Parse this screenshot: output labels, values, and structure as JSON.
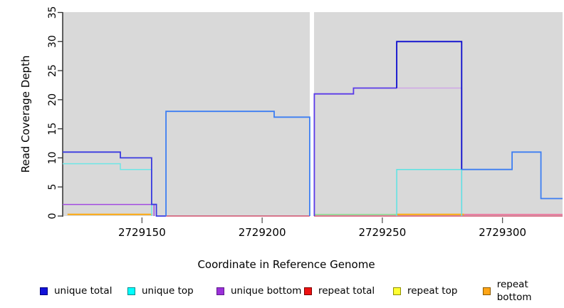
{
  "figure": {
    "xlabel": "Coordinate in Reference Genome",
    "ylabel": "Read Coverage Depth"
  },
  "legend": [
    {
      "label": "unique total",
      "color": "#1212d9",
      "border": "#000080"
    },
    {
      "label": "unique top",
      "color": "#00ffff",
      "border": "#008b8b"
    },
    {
      "label": "unique bottom",
      "color": "#9b30d9",
      "border": "#5e1b8a"
    },
    {
      "label": "repeat total",
      "color": "#ee1111",
      "border": "#7a0000"
    },
    {
      "label": "repeat top",
      "color": "#ffff33",
      "border": "#8f8f00"
    },
    {
      "label": "repeat bottom",
      "color": "#ffa517",
      "border": "#8a5a00"
    }
  ],
  "chart_data": {
    "type": "line",
    "subtype": "step-coverage",
    "title": "",
    "xlabel": "Coordinate in Reference Genome",
    "ylabel": "Read Coverage Depth",
    "xlim": [
      2729117,
      2729325
    ],
    "ylim": [
      0,
      35
    ],
    "xticks": [
      2729150,
      2729200,
      2729250,
      2729300
    ],
    "yticks": [
      0,
      5,
      10,
      15,
      20,
      25,
      30,
      35
    ],
    "plot_background": "#d9d9d9",
    "gap_band_x": [
      2729219.8,
      2729221.6
    ],
    "legend_position": "bottom",
    "grid": false,
    "series": [
      {
        "name": "unique total",
        "color": "#0000cd",
        "steps": [
          [
            2729117,
            11
          ],
          [
            2729141,
            10
          ],
          [
            2729154,
            2
          ],
          [
            2729156,
            0
          ],
          [
            2729160,
            18
          ],
          [
            2729205,
            17
          ],
          [
            2729220,
            0
          ],
          [
            2729222,
            21
          ],
          [
            2729238,
            22
          ],
          [
            2729256,
            30
          ],
          [
            2729283,
            8
          ],
          [
            2729304,
            11
          ],
          [
            2729316,
            3
          ],
          [
            2729325,
            3
          ]
        ]
      },
      {
        "name": "unique top",
        "color": "#00e5ee",
        "steps": [
          [
            2729117,
            9
          ],
          [
            2729141,
            8
          ],
          [
            2729154,
            0
          ],
          [
            2729256,
            8
          ],
          [
            2729283,
            0
          ],
          [
            2729325,
            0
          ]
        ]
      },
      {
        "name": "unique bottom",
        "color": "#9b30d9",
        "steps": [
          [
            2729117,
            2
          ],
          [
            2729155,
            0
          ],
          [
            2729222,
            21
          ],
          [
            2729238,
            22
          ],
          [
            2729283,
            0
          ],
          [
            2729325,
            0
          ]
        ]
      },
      {
        "name": "repeat total",
        "color": "#cc3355",
        "steps": [
          [
            2729117,
            0
          ],
          [
            2729325,
            0
          ]
        ]
      },
      {
        "name": "repeat top",
        "color": "#e8e800",
        "steps": [
          [
            2729222,
            0
          ],
          [
            2729256,
            0
          ],
          [
            2729325,
            0
          ]
        ]
      },
      {
        "name": "repeat bottom",
        "color": "#ffa500",
        "steps": [
          [
            2729119,
            0
          ],
          [
            2729154,
            0
          ],
          [
            2729256,
            0
          ],
          [
            2729284,
            0
          ],
          [
            2729325,
            0
          ]
        ]
      }
    ],
    "draw_segments": [
      {
        "name": "repeat-total-zero-left",
        "color": "#cc3355",
        "w": 1.3,
        "pts": [
          [
            2729160,
            0
          ],
          [
            2729219.8,
            0
          ]
        ]
      },
      {
        "name": "repeat-total-zero-right",
        "color": "#cc3355",
        "w": 1.3,
        "pts": [
          [
            2729221.6,
            0
          ],
          [
            2729325,
            0
          ]
        ]
      },
      {
        "name": "repeat-bottom-zero-left",
        "color": "#ffa500",
        "w": 1.8,
        "pts": [
          [
            2729119,
            0.28
          ],
          [
            2729154.3,
            0.28
          ]
        ]
      },
      {
        "name": "repeat-top-zero-mid",
        "color": "#8ad88a",
        "w": 1.5,
        "pts": [
          [
            2729221.6,
            0.28
          ],
          [
            2729256,
            0.28
          ]
        ]
      },
      {
        "name": "repeat-bottom-zero-mid",
        "color": "#ffa500",
        "w": 1.8,
        "pts": [
          [
            2729256,
            0.28
          ],
          [
            2729284,
            0.28
          ]
        ]
      },
      {
        "name": "repeat-total-zero-upper",
        "color": "#ef5f90",
        "w": 1.4,
        "pts": [
          [
            2729284,
            0.28
          ],
          [
            2729325,
            0.28
          ]
        ]
      },
      {
        "name": "unique-bottom-22-level",
        "color": "#cfa6e6",
        "w": 1.5,
        "pts": [
          [
            2729256,
            22
          ],
          [
            2729283,
            22
          ]
        ]
      },
      {
        "name": "unique-bottom-22-drop",
        "color": "#b478dd",
        "w": 1.5,
        "pts": [
          [
            2729283,
            22
          ],
          [
            2729283,
            0
          ]
        ]
      },
      {
        "name": "unique-bottom-left",
        "color": "#a44ee0",
        "w": 1.5,
        "pts": [
          [
            2729117,
            2
          ],
          [
            2729155,
            2
          ],
          [
            2729155,
            0
          ]
        ]
      },
      {
        "name": "unique-top-left",
        "color": "#6fe6e6",
        "w": 1.5,
        "pts": [
          [
            2729117,
            9
          ],
          [
            2729141,
            9
          ],
          [
            2729141,
            8
          ],
          [
            2729154,
            8
          ],
          [
            2729154,
            0
          ]
        ]
      },
      {
        "name": "unique-top-right",
        "color": "#5ce3e3",
        "w": 1.5,
        "pts": [
          [
            2729256,
            0
          ],
          [
            2729256,
            8
          ],
          [
            2729283,
            8
          ],
          [
            2729283,
            0
          ]
        ]
      },
      {
        "name": "unique-total-left",
        "color": "#3a3ae0",
        "w": 1.8,
        "pts": [
          [
            2729117,
            11
          ],
          [
            2729141,
            11
          ],
          [
            2729141,
            10
          ],
          [
            2729154,
            10
          ],
          [
            2729154,
            2
          ],
          [
            2729156,
            2
          ],
          [
            2729156,
            0
          ],
          [
            2729160,
            0
          ]
        ]
      },
      {
        "name": "unique-total-mid",
        "color": "#3d7ef2",
        "w": 1.8,
        "pts": [
          [
            2729160,
            0
          ],
          [
            2729160,
            18
          ],
          [
            2729205,
            18
          ],
          [
            2729205,
            17
          ],
          [
            2729219.8,
            17
          ],
          [
            2729219.8,
            0
          ]
        ]
      },
      {
        "name": "unique-total-violet",
        "color": "#5a3ae8",
        "w": 1.8,
        "pts": [
          [
            2729221.7,
            0
          ],
          [
            2729221.7,
            21
          ],
          [
            2729238,
            21
          ],
          [
            2729238,
            22
          ],
          [
            2729256,
            22
          ]
        ]
      },
      {
        "name": "unique-total-peak",
        "color": "#0b0bce",
        "w": 1.8,
        "pts": [
          [
            2729256,
            22
          ],
          [
            2729256,
            30
          ],
          [
            2729283,
            30
          ],
          [
            2729283,
            8
          ]
        ]
      },
      {
        "name": "unique-total-right",
        "color": "#3d7ef2",
        "w": 1.8,
        "pts": [
          [
            2729283,
            8
          ],
          [
            2729304,
            8
          ],
          [
            2729304,
            11
          ],
          [
            2729316,
            11
          ],
          [
            2729316,
            3
          ],
          [
            2729325,
            3
          ]
        ]
      }
    ]
  }
}
